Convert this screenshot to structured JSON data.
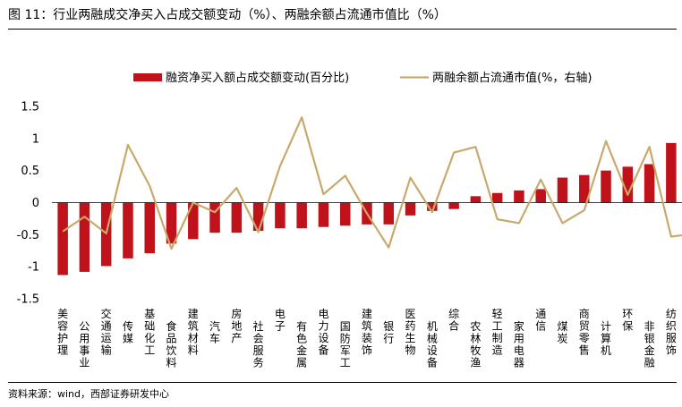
{
  "header": {
    "title": "图 11：行业两融成交净买入占成交额变动（%）、两融余额占流通市值比（%）"
  },
  "footer": {
    "source": "资料来源：wind，西部证券研发中心"
  },
  "colors": {
    "bar": "#c0121b",
    "line": "#c9a96b"
  },
  "chart_data": {
    "type": "bar+line",
    "title": "行业两融成交净买入占成交额变动（%）、两融余额占流通市值比（%）",
    "ylim": [
      -1.5,
      1.5
    ],
    "yticks": [
      "1.5",
      "1",
      "0.5",
      "0",
      "-0.5",
      "-1",
      "-1.5"
    ],
    "ytick_values": [
      1.5,
      1,
      0.5,
      0,
      -0.5,
      -1,
      -1.5
    ],
    "grid": false,
    "legend_position": "top",
    "categories": [
      "美容护理",
      "公用事业",
      "交通运输",
      "传媒",
      "基础化工",
      "食品饮料",
      "建筑材料",
      "汽车",
      "房地产",
      "社会服务",
      "电子",
      "有色金属",
      "电力设备",
      "国防军工",
      "建筑装饰",
      "银行",
      "医药生物",
      "机械设备",
      "综合",
      "农林牧渔",
      "轻工制造",
      "家用电器",
      "通信",
      "煤炭",
      "商贸零售",
      "计算机",
      "环保",
      "非银金融",
      "纺织服饰"
    ],
    "series": [
      {
        "name": "融资净买入额占成交额变动(百分比)",
        "type": "bar",
        "axis": "left",
        "values": [
          -1.13,
          -1.08,
          -0.99,
          -0.87,
          -0.79,
          -0.64,
          -0.57,
          -0.47,
          -0.47,
          -0.44,
          -0.4,
          -0.4,
          -0.38,
          -0.36,
          -0.34,
          -0.34,
          -0.2,
          -0.13,
          -0.1,
          0.1,
          0.15,
          0.19,
          0.21,
          0.39,
          0.43,
          0.5,
          0.56,
          0.6,
          0.93
        ]
      },
      {
        "name": "两融余额占流通市值(%，右轴)",
        "type": "line",
        "axis": "right",
        "values": [
          -0.45,
          -0.22,
          -0.48,
          0.9,
          0.26,
          -0.72,
          0.0,
          -0.15,
          0.23,
          -0.46,
          0.57,
          1.33,
          0.13,
          0.42,
          -0.17,
          -0.7,
          0.39,
          -0.15,
          0.78,
          0.87,
          -0.26,
          -0.32,
          0.36,
          -0.32,
          -0.12,
          0.96,
          0.12,
          0.87,
          -0.53
        ]
      }
    ]
  }
}
